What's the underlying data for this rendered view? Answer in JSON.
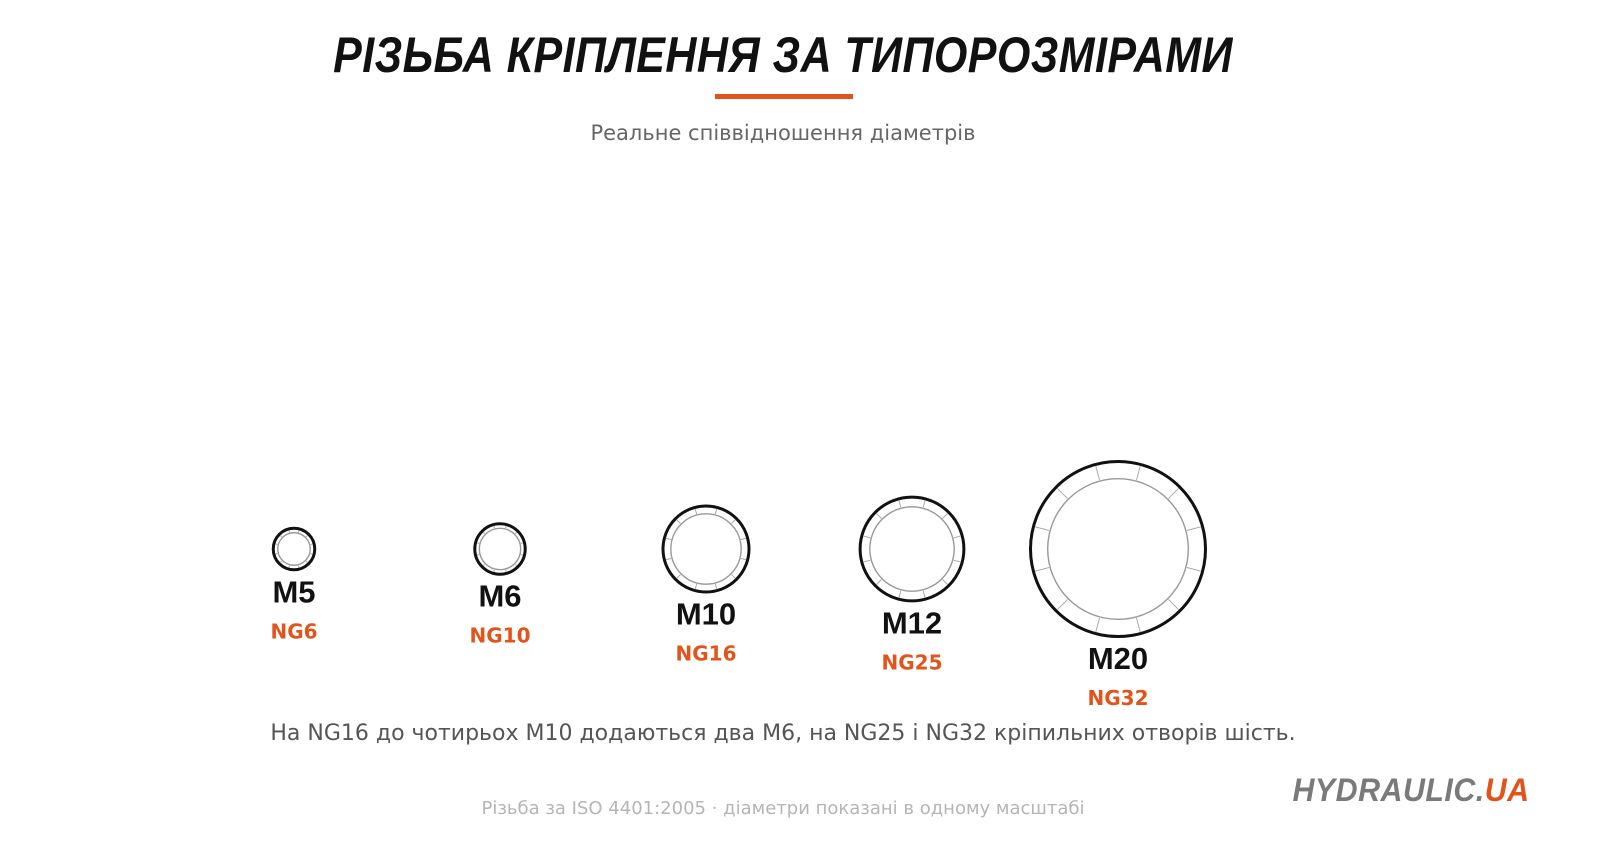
{
  "title": "РІЗЬБА КРІПЛЕННЯ ЗА ТИПОРОЗМІРАМИ",
  "subtitle": "Реальне співвідношення діаметрів",
  "threads": [
    {
      "size": "M5",
      "ng": "NG6",
      "diameter_mm": 5
    },
    {
      "size": "M6",
      "ng": "NG10",
      "diameter_mm": 6
    },
    {
      "size": "M10",
      "ng": "NG16",
      "diameter_mm": 10
    },
    {
      "size": "M12",
      "ng": "NG25",
      "diameter_mm": 12
    },
    {
      "size": "M20",
      "ng": "NG32",
      "diameter_mm": 20
    }
  ],
  "note": "На NG16 до чотирьох M10 додаються два M6, на NG25 і NG32 кріпильних отворів шість.",
  "footnote": "Різьба за ISO 4401:2005 · діаметри показані в одному масштабі",
  "logo": {
    "main": "HYDRAULIC.",
    "suffix": "UA"
  },
  "colors": {
    "accent": "#e2541b",
    "title": "#111111",
    "text": "#555555",
    "muted": "#b5b5b5",
    "ring_stroke": "#111111",
    "ring_inner": "#999999"
  }
}
